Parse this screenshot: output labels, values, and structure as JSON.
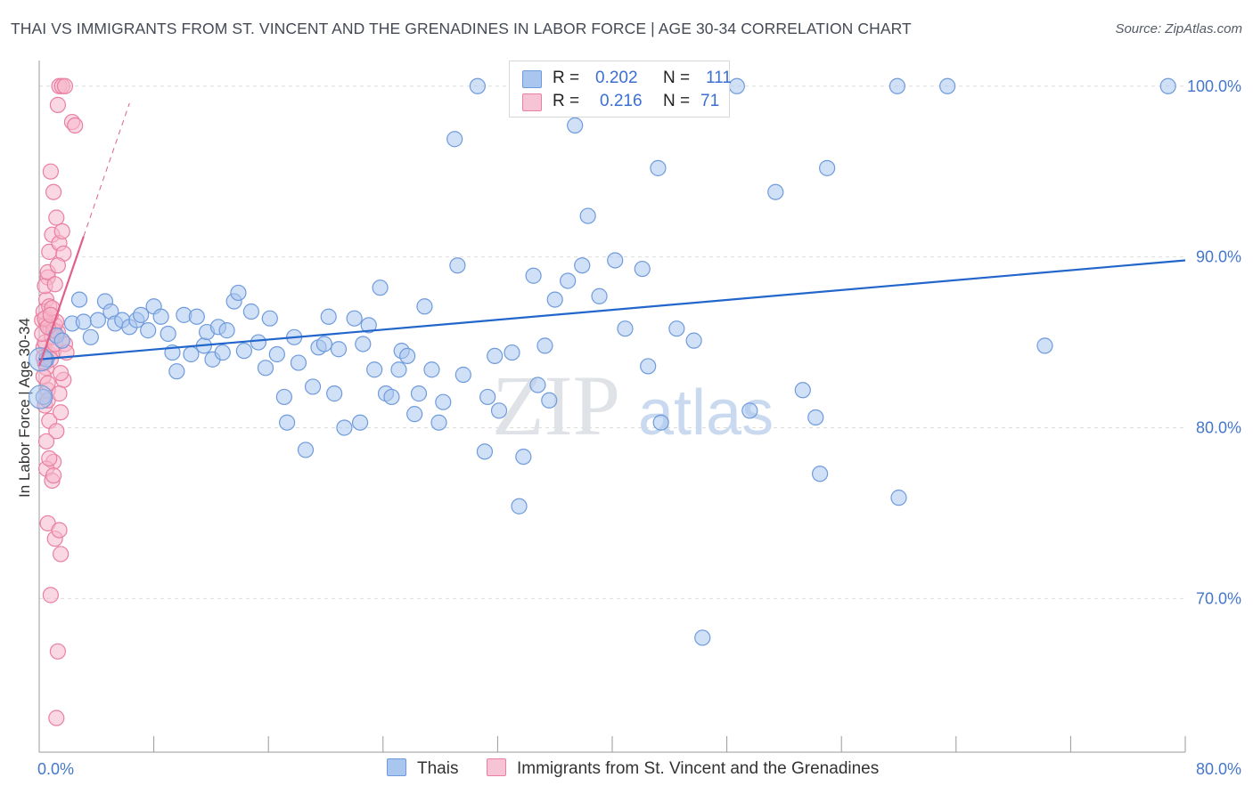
{
  "header": {
    "title": "THAI VS IMMIGRANTS FROM ST. VINCENT AND THE GRENADINES IN LABOR FORCE | AGE 30-34 CORRELATION CHART",
    "source": "Source: ZipAtlas.com"
  },
  "watermark": {
    "zip": "ZIP",
    "atlas": "atlas"
  },
  "legend_top": {
    "rows": [
      {
        "r_label": "R =",
        "r_value": "0.202",
        "n_label": "N =",
        "n_value": "111"
      },
      {
        "r_label": "R =",
        "r_value": "0.216",
        "n_label": "N =",
        "n_value": "71"
      }
    ]
  },
  "legend_bottom": {
    "items": [
      {
        "label": "Thais"
      },
      {
        "label": "Immigrants from St. Vincent and the Grenadines"
      }
    ]
  },
  "colors": {
    "blue_fill": "#a9c6ee",
    "blue_stroke": "#6f9bdc",
    "blue_line": "#2266cc",
    "pink_fill": "#f6b8cc",
    "pink_stroke": "#ea7fa0",
    "pink_line": "#e0608a",
    "tick_label": "#4477cc",
    "grid": "#dddddd"
  },
  "chart_data": {
    "type": "scatter",
    "title": "THAI VS IMMIGRANTS FROM ST. VINCENT AND THE GRENADINES IN LABOR FORCE | AGE 30-34 CORRELATION CHART",
    "xlabel": "",
    "ylabel": "In Labor Force | Age 30-34",
    "xlim": [
      0,
      80
    ],
    "ylim": [
      61,
      101.5
    ],
    "x_tick_labels": [
      "0.0%",
      "80.0%"
    ],
    "y_ticks": [
      70,
      80,
      90,
      100
    ],
    "y_tick_labels": [
      "70.0%",
      "80.0%",
      "90.0%",
      "100.0%"
    ],
    "series": [
      {
        "name": "Thais",
        "color": "#6f9bdc",
        "R": 0.202,
        "N": 111,
        "trend": {
          "x": [
            0,
            80
          ],
          "y": [
            84.0,
            89.8
          ],
          "style": "solid"
        },
        "points": [
          [
            0.3,
            81.8
          ],
          [
            0.5,
            84.0
          ],
          [
            1.2,
            85.4
          ],
          [
            1.6,
            85.1
          ],
          [
            2.3,
            86.1
          ],
          [
            2.8,
            87.5
          ],
          [
            3.1,
            86.2
          ],
          [
            3.6,
            85.3
          ],
          [
            4.1,
            86.3
          ],
          [
            4.6,
            87.4
          ],
          [
            5.0,
            86.8
          ],
          [
            5.3,
            86.1
          ],
          [
            5.8,
            86.3
          ],
          [
            6.3,
            85.9
          ],
          [
            6.8,
            86.3
          ],
          [
            7.1,
            86.6
          ],
          [
            7.6,
            85.7
          ],
          [
            8.0,
            87.1
          ],
          [
            8.5,
            86.5
          ],
          [
            9.0,
            85.5
          ],
          [
            9.3,
            84.4
          ],
          [
            9.6,
            83.3
          ],
          [
            10.1,
            86.6
          ],
          [
            10.6,
            84.3
          ],
          [
            11.0,
            86.5
          ],
          [
            11.5,
            84.8
          ],
          [
            11.7,
            85.6
          ],
          [
            12.1,
            84.0
          ],
          [
            12.5,
            85.9
          ],
          [
            12.8,
            84.4
          ],
          [
            13.1,
            85.7
          ],
          [
            13.6,
            87.4
          ],
          [
            13.9,
            87.9
          ],
          [
            14.3,
            84.5
          ],
          [
            14.8,
            86.8
          ],
          [
            15.3,
            85.0
          ],
          [
            15.8,
            83.5
          ],
          [
            16.1,
            86.4
          ],
          [
            16.6,
            84.3
          ],
          [
            17.1,
            81.8
          ],
          [
            17.3,
            80.3
          ],
          [
            17.8,
            85.3
          ],
          [
            18.1,
            83.8
          ],
          [
            18.6,
            78.7
          ],
          [
            19.1,
            82.4
          ],
          [
            19.5,
            84.7
          ],
          [
            19.9,
            84.9
          ],
          [
            20.2,
            86.5
          ],
          [
            20.6,
            82.0
          ],
          [
            20.9,
            84.6
          ],
          [
            21.3,
            80.0
          ],
          [
            22.0,
            86.4
          ],
          [
            22.4,
            80.3
          ],
          [
            22.6,
            84.9
          ],
          [
            23.0,
            86.0
          ],
          [
            23.4,
            83.4
          ],
          [
            23.8,
            88.2
          ],
          [
            24.2,
            82.0
          ],
          [
            24.6,
            81.8
          ],
          [
            25.1,
            83.4
          ],
          [
            25.3,
            84.5
          ],
          [
            25.7,
            84.2
          ],
          [
            26.2,
            80.8
          ],
          [
            26.5,
            82.0
          ],
          [
            26.9,
            87.1
          ],
          [
            27.4,
            83.4
          ],
          [
            27.9,
            80.3
          ],
          [
            28.2,
            81.5
          ],
          [
            29.0,
            96.9
          ],
          [
            29.2,
            89.5
          ],
          [
            29.6,
            83.1
          ],
          [
            30.6,
            100.0
          ],
          [
            31.1,
            78.6
          ],
          [
            31.3,
            81.8
          ],
          [
            31.8,
            84.2
          ],
          [
            32.1,
            81.0
          ],
          [
            33.0,
            84.4
          ],
          [
            33.5,
            75.4
          ],
          [
            33.8,
            78.3
          ],
          [
            34.5,
            88.9
          ],
          [
            34.8,
            82.5
          ],
          [
            35.3,
            84.8
          ],
          [
            35.6,
            81.6
          ],
          [
            36.0,
            87.5
          ],
          [
            36.9,
            88.6
          ],
          [
            37.4,
            97.7
          ],
          [
            37.9,
            89.5
          ],
          [
            38.3,
            92.4
          ],
          [
            39.1,
            87.7
          ],
          [
            40.2,
            89.8
          ],
          [
            40.9,
            85.8
          ],
          [
            42.1,
            89.3
          ],
          [
            42.5,
            83.6
          ],
          [
            43.2,
            95.2
          ],
          [
            43.4,
            80.3
          ],
          [
            44.5,
            85.8
          ],
          [
            45.7,
            85.1
          ],
          [
            46.3,
            67.7
          ],
          [
            48.7,
            100.0
          ],
          [
            49.6,
            81.0
          ],
          [
            51.4,
            93.8
          ],
          [
            53.3,
            82.2
          ],
          [
            54.2,
            80.6
          ],
          [
            54.5,
            77.3
          ],
          [
            55.0,
            95.2
          ],
          [
            59.9,
            100.0
          ],
          [
            60.0,
            75.9
          ],
          [
            63.4,
            100.0
          ],
          [
            70.2,
            84.8
          ],
          [
            78.8,
            100.0
          ]
        ]
      },
      {
        "name": "Immigrants from St. Vincent and the Grenadines",
        "color": "#ea7fa0",
        "R": 0.216,
        "N": 71,
        "trend": {
          "x": [
            0,
            3.1
          ],
          "y": [
            83.6,
            91.2
          ],
          "style": "solid",
          "extended_to": [
            6.3,
            99.0
          ],
          "extended_style": "dashed"
        },
        "points": [
          [
            0.2,
            86.3
          ],
          [
            0.3,
            84.7
          ],
          [
            0.4,
            83.8
          ],
          [
            0.5,
            86.1
          ],
          [
            0.6,
            82.2
          ],
          [
            0.4,
            85.0
          ],
          [
            0.7,
            84.3
          ],
          [
            0.8,
            85.8
          ],
          [
            1.0,
            84.5
          ],
          [
            1.1,
            86.0
          ],
          [
            0.5,
            87.5
          ],
          [
            0.6,
            88.8
          ],
          [
            0.7,
            90.3
          ],
          [
            0.9,
            91.3
          ],
          [
            1.0,
            93.8
          ],
          [
            1.2,
            92.3
          ],
          [
            1.4,
            90.8
          ],
          [
            1.6,
            91.5
          ],
          [
            1.7,
            90.2
          ],
          [
            0.8,
            95.0
          ],
          [
            1.3,
            98.9
          ],
          [
            1.4,
            100.0
          ],
          [
            1.6,
            100.0
          ],
          [
            1.8,
            100.0
          ],
          [
            2.3,
            97.9
          ],
          [
            2.5,
            97.7
          ],
          [
            0.4,
            81.3
          ],
          [
            0.6,
            81.6
          ],
          [
            0.7,
            80.4
          ],
          [
            1.0,
            78.0
          ],
          [
            1.2,
            79.8
          ],
          [
            1.5,
            80.9
          ],
          [
            1.7,
            82.8
          ],
          [
            0.5,
            77.6
          ],
          [
            0.9,
            76.9
          ],
          [
            0.6,
            74.4
          ],
          [
            1.1,
            73.5
          ],
          [
            1.4,
            74.0
          ],
          [
            1.5,
            72.6
          ],
          [
            0.8,
            70.2
          ],
          [
            1.3,
            66.9
          ],
          [
            1.2,
            63.0
          ],
          [
            0.3,
            86.8
          ],
          [
            0.4,
            88.3
          ],
          [
            0.6,
            89.1
          ],
          [
            0.7,
            87.1
          ],
          [
            0.9,
            85.3
          ],
          [
            1.1,
            84.9
          ],
          [
            1.3,
            85.6
          ],
          [
            1.6,
            85.1
          ],
          [
            1.8,
            84.9
          ],
          [
            0.2,
            85.5
          ],
          [
            0.3,
            84.1
          ],
          [
            0.5,
            83.5
          ],
          [
            0.8,
            84.0
          ],
          [
            1.0,
            85.7
          ],
          [
            1.2,
            86.2
          ],
          [
            0.4,
            86.4
          ],
          [
            0.6,
            85.9
          ],
          [
            0.9,
            87.0
          ],
          [
            1.1,
            88.4
          ],
          [
            1.3,
            89.5
          ],
          [
            0.7,
            78.2
          ],
          [
            1.0,
            77.2
          ],
          [
            0.5,
            79.2
          ],
          [
            0.3,
            83.0
          ],
          [
            0.6,
            82.6
          ],
          [
            1.5,
            83.2
          ],
          [
            1.9,
            84.4
          ],
          [
            0.8,
            86.6
          ],
          [
            1.4,
            82.0
          ]
        ]
      }
    ]
  }
}
